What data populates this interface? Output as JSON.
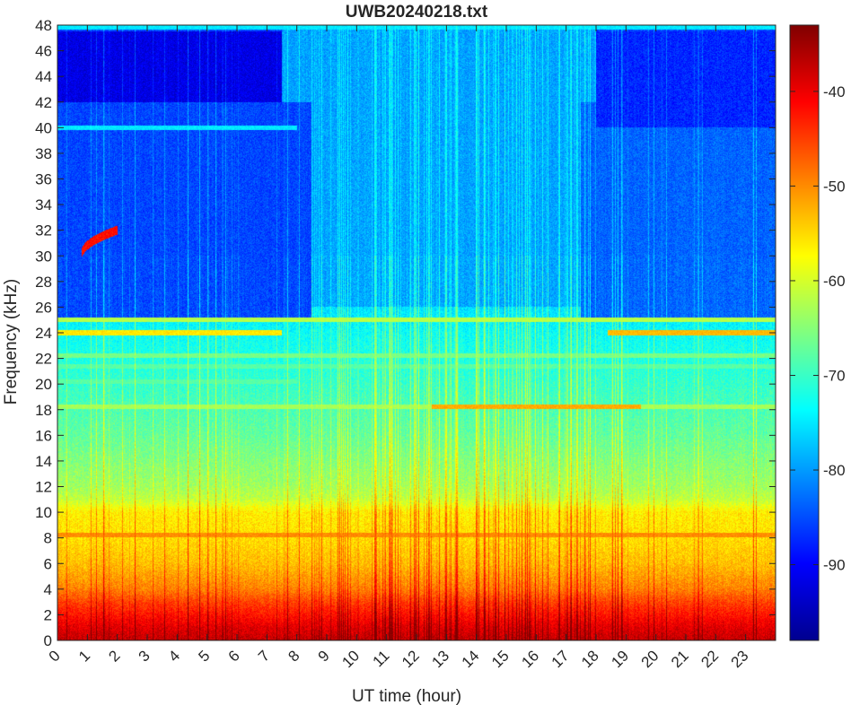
{
  "figure": {
    "title": "UWB20240218.txt"
  },
  "chart_data": {
    "type": "heatmap",
    "title": "UWB20240218.txt",
    "xlabel": "UT time (hour)",
    "ylabel": "Frequency (kHz)",
    "xlim": [
      0,
      24
    ],
    "ylim": [
      0,
      48
    ],
    "x_ticks": [
      0,
      1,
      2,
      3,
      4,
      5,
      6,
      7,
      8,
      9,
      10,
      11,
      12,
      13,
      14,
      15,
      16,
      17,
      18,
      19,
      20,
      21,
      22,
      23
    ],
    "y_ticks": [
      0,
      2,
      4,
      6,
      8,
      10,
      12,
      14,
      16,
      18,
      20,
      22,
      24,
      26,
      28,
      30,
      32,
      34,
      36,
      38,
      40,
      42,
      44,
      46,
      48
    ],
    "colormap": "jet",
    "colorbar": {
      "clim": [
        -98,
        -33
      ],
      "ticks": [
        -90,
        -80,
        -70,
        -60,
        -50,
        -40
      ]
    },
    "colorbar_ticks": [
      "-90",
      "-80",
      "-70",
      "-60",
      "-50",
      "-40"
    ],
    "noise_profile": [
      {
        "f": 0,
        "dB": -38
      },
      {
        "f": 1,
        "dB": -40
      },
      {
        "f": 2,
        "dB": -43
      },
      {
        "f": 3,
        "dB": -46
      },
      {
        "f": 4,
        "dB": -50
      },
      {
        "f": 5,
        "dB": -52
      },
      {
        "f": 6,
        "dB": -54
      },
      {
        "f": 8,
        "dB": -56
      },
      {
        "f": 10,
        "dB": -57
      },
      {
        "f": 11,
        "dB": -62
      },
      {
        "f": 12,
        "dB": -64
      },
      {
        "f": 16,
        "dB": -68
      },
      {
        "f": 20,
        "dB": -71
      },
      {
        "f": 24,
        "dB": -74
      },
      {
        "f": 28,
        "dB": -79
      },
      {
        "f": 32,
        "dB": -81
      },
      {
        "f": 40,
        "dB": -84
      },
      {
        "f": 48,
        "dB": -86
      }
    ],
    "time_regions": [
      {
        "t0": 0.0,
        "t1": 7.5,
        "f0": 42,
        "f1": 47.5,
        "dB": -92
      },
      {
        "t0": 0.0,
        "t1": 8.5,
        "f0": 25,
        "f1": 42,
        "dB": -86
      },
      {
        "t0": 7.5,
        "t1": 18.0,
        "f0": 42,
        "f1": 48,
        "dB": -80
      },
      {
        "t0": 8.5,
        "t1": 17.5,
        "f0": 26,
        "f1": 42,
        "dB": -80
      },
      {
        "t0": 18.0,
        "t1": 24.0,
        "f0": 40,
        "f1": 47.5,
        "dB": -88
      },
      {
        "t0": 17.5,
        "t1": 24.0,
        "f0": 25,
        "f1": 40,
        "dB": -84
      }
    ],
    "transmitter_lines": [
      {
        "f": 47.8,
        "t0": 0.0,
        "t1": 24.0,
        "dB": -75
      },
      {
        "f": 40.0,
        "t0": 0.0,
        "t1": 8.0,
        "dB": -75
      },
      {
        "f": 25.0,
        "t0": 0.0,
        "t1": 24.0,
        "dB": -62
      },
      {
        "f": 24.0,
        "t0": 0.0,
        "t1": 7.5,
        "dB": -56
      },
      {
        "f": 24.0,
        "t0": 18.4,
        "t1": 24.0,
        "dB": -53
      },
      {
        "f": 22.2,
        "t0": 0.0,
        "t1": 24.0,
        "dB": -66
      },
      {
        "f": 21.4,
        "t0": 0.0,
        "t1": 24.0,
        "dB": -68
      },
      {
        "f": 20.2,
        "t0": 0.0,
        "t1": 8.0,
        "dB": -68
      },
      {
        "f": 18.2,
        "t0": 0.0,
        "t1": 24.0,
        "dB": -63
      },
      {
        "f": 18.2,
        "t0": 12.5,
        "t1": 19.5,
        "dB": -52
      },
      {
        "f": 8.2,
        "t0": 0.0,
        "t1": 24.0,
        "dB": -50
      }
    ],
    "chirp": {
      "t0": 0.8,
      "t1": 2.0,
      "f0": 30.0,
      "f1": 32.0,
      "dB": -42
    }
  }
}
